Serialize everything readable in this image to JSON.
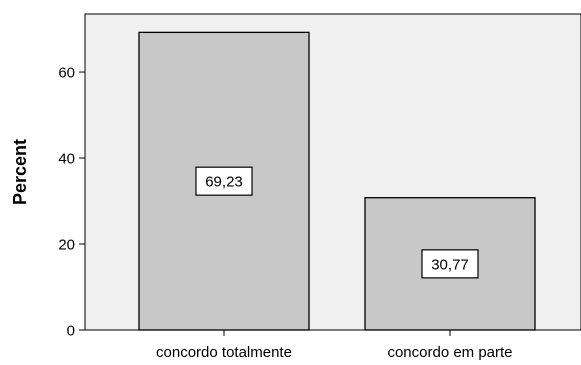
{
  "chart_data": {
    "type": "bar",
    "categories": [
      "concordo totalmente",
      "concordo em parte"
    ],
    "values": [
      69.23,
      30.77
    ],
    "data_labels": [
      "69,23",
      "30,77"
    ],
    "ylabel": "Percent",
    "xlabel": "",
    "ylim": [
      0,
      73.5
    ],
    "yticks": [
      0,
      20,
      40,
      60
    ],
    "ytick_labels": [
      "0",
      "20",
      "40",
      "60"
    ],
    "grid": false,
    "legend": "none",
    "colors": {
      "bar_fill": "#c8c8c8",
      "bar_stroke": "#000000",
      "plot_background": "#f0f0f0",
      "label_box_fill": "#ffffff"
    }
  }
}
